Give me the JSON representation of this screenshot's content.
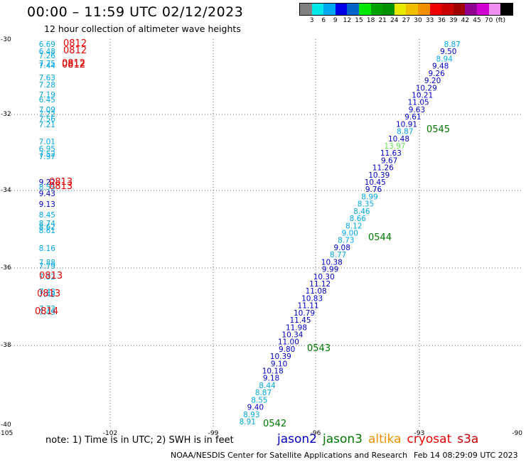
{
  "title": "00:00 – 11:59 UTC 02/12/2023",
  "subtitle": "12 hour collection of altimeter wave heights",
  "legend": {
    "colors": [
      "#808080",
      "#00e8e8",
      "#00a8f0",
      "#0000e8",
      "#0064c8",
      "#00e800",
      "#00a000",
      "#009000",
      "#e8e800",
      "#f0c000",
      "#f09000",
      "#f00000",
      "#c80000",
      "#a00000",
      "#900090",
      "#d000d0",
      "#f090f0",
      "#000000"
    ],
    "labels": [
      "3",
      "6",
      "9",
      "12",
      "15",
      "18",
      "21",
      "24",
      "27",
      "30",
      "33",
      "36",
      "39",
      "42",
      "45",
      "70",
      "(ft)"
    ]
  },
  "axes": {
    "lon_ticks": [
      "-105",
      "-102",
      "-99",
      "-96",
      "-93",
      "-90"
    ],
    "lat_ticks": [
      "-30",
      "-32",
      "-34",
      "-36",
      "-38",
      "-40"
    ]
  },
  "series_colors": {
    "jason2": "#0000c8",
    "jason3": "#007800",
    "altika": "#f09000",
    "cryosat": "#e80000",
    "s3a": "#c80000",
    "light": "#00a8e8",
    "green": "#66e855"
  },
  "track_east": {
    "color_default": "#0000c8",
    "points": [
      {
        "v": "8.87",
        "c": "#00a8e8"
      },
      {
        "v": "9.50"
      },
      {
        "v": "8.94",
        "c": "#00a8e8"
      },
      {
        "v": "9.48"
      },
      {
        "v": "9.26"
      },
      {
        "v": "9.20"
      },
      {
        "v": "10.29"
      },
      {
        "v": "10.21"
      },
      {
        "v": "11.05"
      },
      {
        "v": "9.63"
      },
      {
        "v": "9.61"
      },
      {
        "v": "10.91"
      },
      {
        "v": "8.87",
        "c": "#00a8e8"
      },
      {
        "v": "10.48"
      },
      {
        "v": "13.97",
        "c": "#66e855"
      },
      {
        "v": "11.63"
      },
      {
        "v": "9.67"
      },
      {
        "v": "11.26"
      },
      {
        "v": "10.39"
      },
      {
        "v": "10.45"
      },
      {
        "v": "9.76"
      },
      {
        "v": "8.99",
        "c": "#00a8e8"
      },
      {
        "v": "8.35",
        "c": "#00a8e8"
      },
      {
        "v": "8.46",
        "c": "#00a8e8"
      },
      {
        "v": "8.66",
        "c": "#00a8e8"
      },
      {
        "v": "8.12",
        "c": "#00a8e8"
      },
      {
        "v": "9.00",
        "c": "#00a8e8"
      },
      {
        "v": "8.73",
        "c": "#00a8e8"
      },
      {
        "v": "9.08"
      },
      {
        "v": "8.77",
        "c": "#00a8e8"
      },
      {
        "v": "10.38"
      },
      {
        "v": "9.99"
      },
      {
        "v": "10.30"
      },
      {
        "v": "11.12"
      },
      {
        "v": "11.08"
      },
      {
        "v": "10.83"
      },
      {
        "v": "11.11"
      },
      {
        "v": "10.79"
      },
      {
        "v": "11.45"
      },
      {
        "v": "11.98"
      },
      {
        "v": "10.34"
      },
      {
        "v": "11.00"
      },
      {
        "v": "9.80"
      },
      {
        "v": "10.39"
      },
      {
        "v": "9.10"
      },
      {
        "v": "10.18"
      },
      {
        "v": "9.18"
      },
      {
        "v": "8.44",
        "c": "#00a8e8"
      },
      {
        "v": "8.87",
        "c": "#00a8e8"
      },
      {
        "v": "8.55",
        "c": "#00a8e8"
      },
      {
        "v": "9.40"
      },
      {
        "v": "8.93",
        "c": "#00a8e8"
      },
      {
        "v": "8.91",
        "c": "#00a8e8"
      }
    ]
  },
  "track_east_times": [
    "0545",
    "0544",
    "0543",
    "0542"
  ],
  "track_west": {
    "color_default": "#00a8e8",
    "points": [
      {
        "v": "6.69"
      },
      {
        "v": "6.48"
      },
      {
        "v": "7.26"
      },
      {
        "v": "7.75"
      },
      {
        "v": "7.44"
      },
      {
        "v": "7.63"
      },
      {
        "v": "7.28"
      },
      {
        "v": "7.19"
      },
      {
        "v": "6.45"
      },
      {
        "v": "7.09"
      },
      {
        "v": "7.22"
      },
      {
        "v": "7.56"
      },
      {
        "v": "7.21"
      },
      {
        "v": "7.01"
      },
      {
        "v": "6.95"
      },
      {
        "v": "7.52"
      },
      {
        "v": "7.97"
      },
      {
        "v": "9.22",
        "c": "#0000c8"
      },
      {
        "v": "8.55"
      },
      {
        "v": "9.43",
        "c": "#0000c8"
      },
      {
        "v": "9.13",
        "c": "#0000c8"
      },
      {
        "v": "8.45"
      },
      {
        "v": "8.74"
      },
      {
        "v": "8.62"
      },
      {
        "v": "8.61"
      },
      {
        "v": "8.16"
      },
      {
        "v": "7.88"
      },
      {
        "v": "7.79"
      },
      {
        "v": "7.32"
      },
      {
        "v": "7.43"
      },
      {
        "v": "7.49"
      },
      {
        "v": "7.73"
      },
      {
        "v": "7.49"
      }
    ]
  },
  "track_west_times": [
    "0812",
    "0812",
    "0812",
    "0812",
    "0813",
    "0813",
    "0813",
    "0813",
    "0814"
  ],
  "note": "note:  1) Time is in UTC;  2) SWH is in feet",
  "satellites": [
    {
      "name": "jason2",
      "color": "#0000c8"
    },
    {
      "name": "jason3",
      "color": "#007800"
    },
    {
      "name": "altika",
      "color": "#f09000"
    },
    {
      "name": "cryosat",
      "color": "#e80000"
    },
    {
      "name": "s3a",
      "color": "#c80000"
    }
  ],
  "credit": "NOAA/NESDIS Center for Satellite Applications and Research",
  "timestamp": "Feb 14 08:29:09 UTC 2023"
}
